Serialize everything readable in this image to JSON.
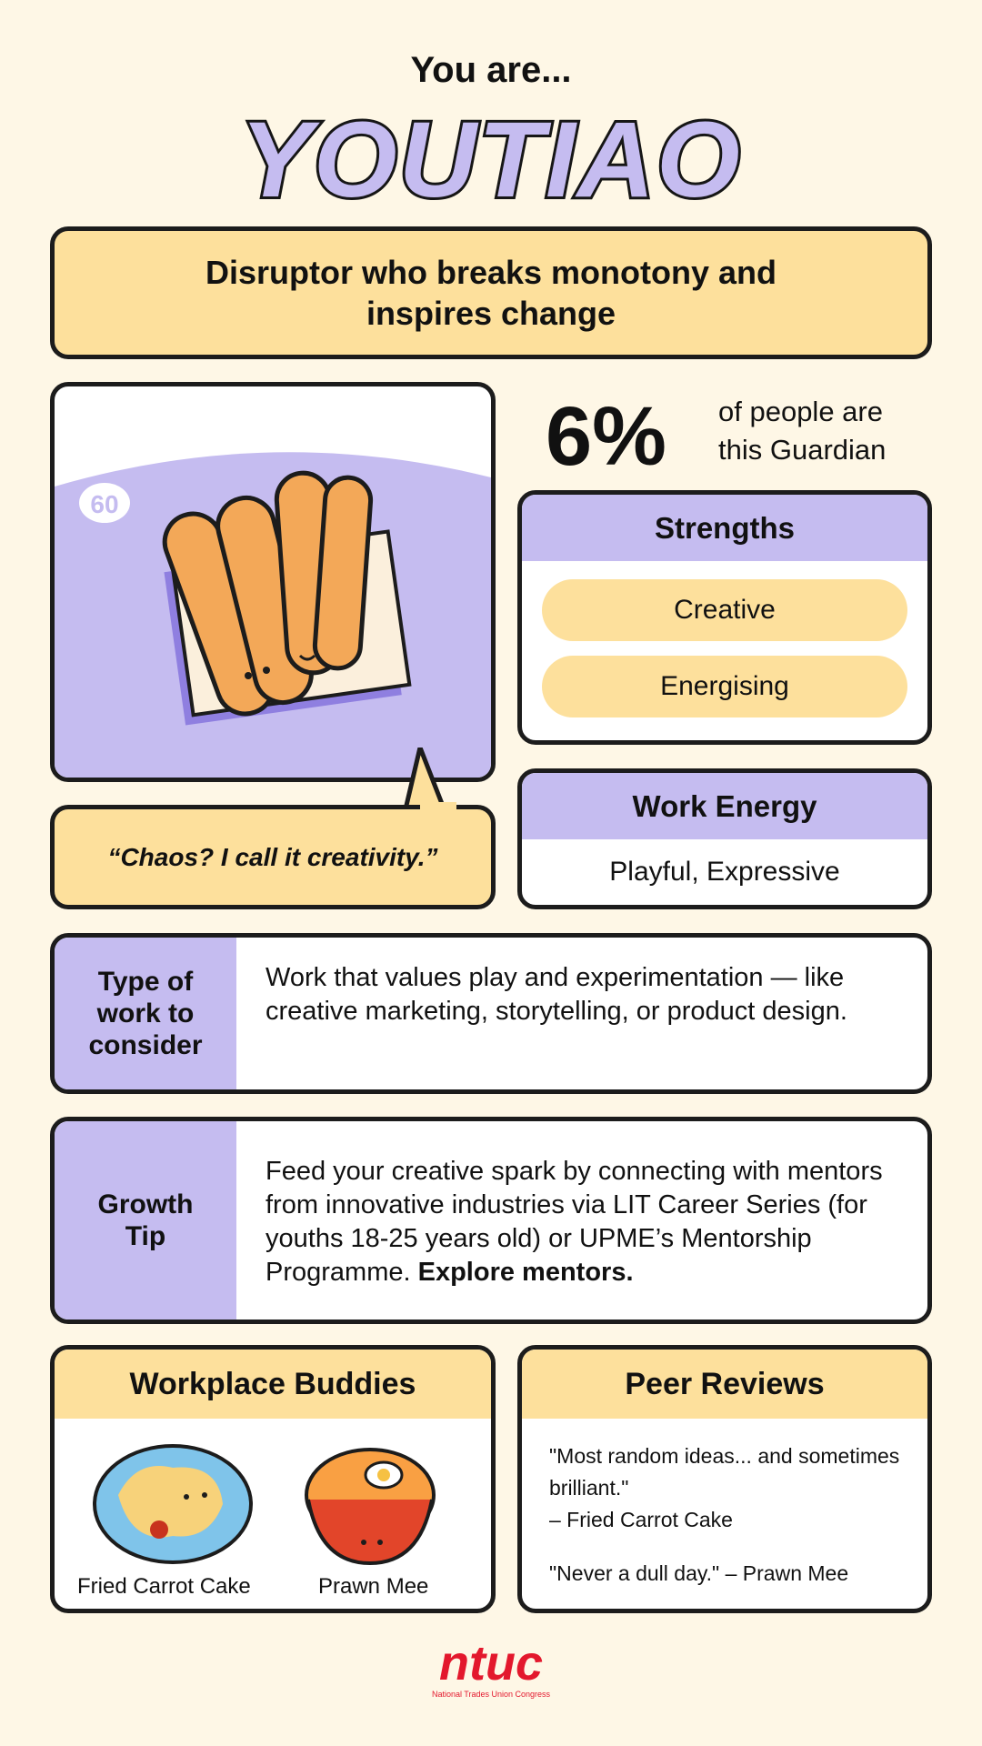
{
  "header": {
    "intro": "You are...",
    "title": "YOUTIAO"
  },
  "tagline": "Disruptor who breaks monotony and inspires change",
  "character": {
    "badge": "60",
    "quote": "“Chaos? I call it creativity.”",
    "illustration": "youtiao-illustration"
  },
  "stat": {
    "value": "6%",
    "caption_line1": "of people are",
    "caption_line2": "this Guardian"
  },
  "strengths": {
    "title": "Strengths",
    "items": [
      "Creative",
      "Energising"
    ]
  },
  "work_energy": {
    "title": "Work Energy",
    "value": "Playful, Expressive"
  },
  "type_of_work": {
    "label": "Type of work to consider",
    "text": "Work that values play and experimentation — like creative marketing, storytelling, or product design."
  },
  "growth_tip": {
    "label": "Growth Tip",
    "text": "Feed your creative spark by connecting with mentors from innovative industries via LIT Career Series (for youths 18-25 years old) or UPME’s Mentorship Programme. ",
    "link": "Explore mentors."
  },
  "buddies": {
    "title": "Workplace Buddies",
    "items": [
      {
        "name": "Fried Carrot Cake",
        "icon": "fried-carrot-cake-icon"
      },
      {
        "name": "Prawn Mee",
        "icon": "prawn-mee-icon"
      }
    ]
  },
  "peer_reviews": {
    "title": "Peer Reviews",
    "items": [
      {
        "quote": "\"Most random ideas... and sometimes brilliant.\"",
        "author": "– Fried Carrot Cake"
      },
      {
        "quote": "\"Never a dull day.\"",
        "author": "– Prawn Mee"
      }
    ]
  },
  "footer": {
    "logo": "ntuc",
    "logo_subtitle": "National Trades Union Congress"
  },
  "colors": {
    "background": "#fef7e6",
    "yellow": "#fde09c",
    "lavender": "#c5bcf0",
    "border": "#1c1c1c",
    "brand_red": "#e3182d"
  }
}
